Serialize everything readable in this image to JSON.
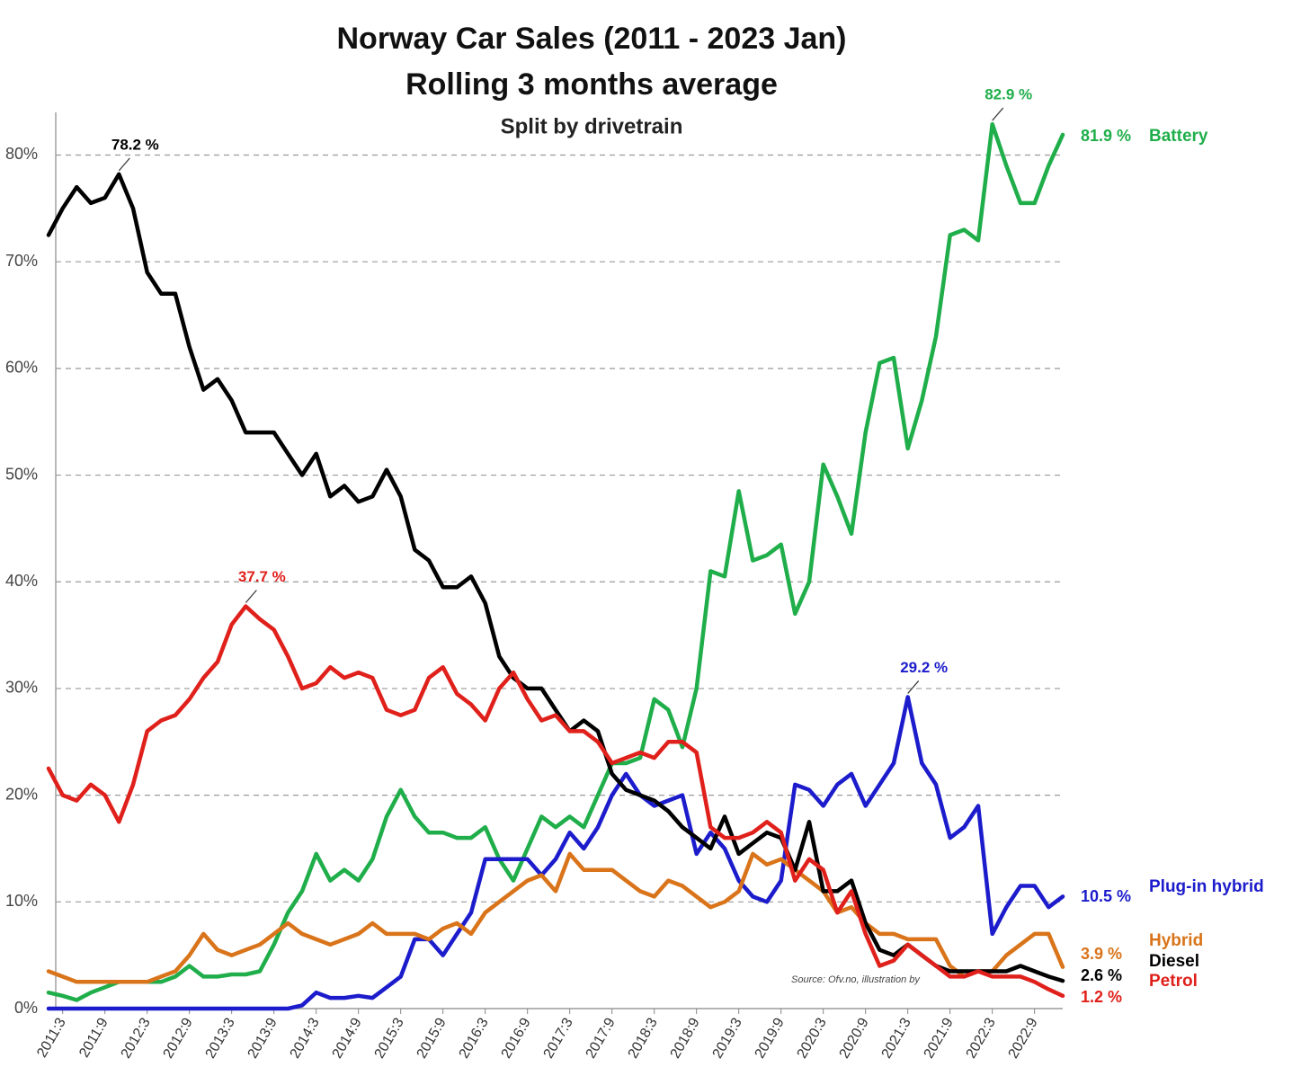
{
  "chart_data": {
    "type": "line",
    "title": "Norway Car Sales (2011 - 2023 Jan)",
    "subtitle": "Rolling 3 months average",
    "subtitle2": "Split by drivetrain",
    "source": "Source: Ofv.no, illustration by",
    "categories": [
      null,
      "2011:3",
      null,
      null,
      "2011:9",
      null,
      null,
      "2012:3",
      null,
      null,
      "2012:9",
      null,
      null,
      "2013:3",
      null,
      null,
      "2013:9",
      null,
      null,
      "2014:3",
      null,
      null,
      "2014:9",
      null,
      null,
      "2015:3",
      null,
      null,
      "2015:9",
      null,
      null,
      "2016:3",
      null,
      null,
      "2016:9",
      null,
      null,
      "2017:3",
      null,
      null,
      "2017:9",
      null,
      null,
      "2018:3",
      null,
      null,
      "2018:9",
      null,
      null,
      "2019:3",
      null,
      null,
      "2019:9",
      null,
      null,
      "2020:3",
      null,
      null,
      "2020:9",
      null,
      null,
      "2021:3",
      null,
      null,
      "2021:9",
      null,
      null,
      "2022:3",
      null,
      null,
      "2022:9",
      null,
      null
    ],
    "ylim": [
      0,
      84
    ],
    "yticks": [
      {
        "value": 0,
        "label": "0%"
      },
      {
        "value": 10,
        "label": "10%"
      },
      {
        "value": 20,
        "label": "20%"
      },
      {
        "value": 30,
        "label": "30%"
      },
      {
        "value": 40,
        "label": "40%"
      },
      {
        "value": 50,
        "label": "50%"
      },
      {
        "value": 60,
        "label": "60%"
      },
      {
        "value": 70,
        "label": "70%"
      },
      {
        "value": 80,
        "label": "80%"
      }
    ],
    "grid": true,
    "series": [
      {
        "name": "Battery",
        "color": "#1fae4a",
        "values": [
          1.5,
          1.2,
          0.8,
          1.5,
          2,
          2.5,
          2.5,
          2.5,
          2.5,
          3,
          4,
          3,
          3,
          3.2,
          3.2,
          3.5,
          6,
          9,
          11,
          14.5,
          12,
          13,
          12,
          14,
          18,
          20.5,
          18,
          16.5,
          16.5,
          16,
          16,
          17,
          14,
          12,
          15,
          18,
          17,
          18,
          17,
          20,
          23,
          23,
          23.5,
          29,
          28,
          24.5,
          30,
          41,
          40.5,
          48.5,
          42,
          42.5,
          43.5,
          37,
          40,
          51,
          48,
          44.5,
          54,
          60.5,
          61,
          52.5,
          57,
          63,
          72.5,
          73,
          72,
          82.9,
          79,
          75.5,
          75.5,
          79,
          81.9
        ],
        "value_labels": [
          null,
          null,
          null,
          null,
          null,
          null,
          null,
          null,
          null,
          null,
          null,
          null,
          null,
          null,
          null,
          null,
          null,
          null,
          null,
          null,
          null,
          null,
          null,
          null,
          null,
          null,
          null,
          null,
          null,
          null,
          null,
          null,
          null,
          null,
          null,
          null,
          null,
          null,
          null,
          null,
          null,
          null,
          null,
          null,
          null,
          null,
          null,
          null,
          null,
          null,
          null,
          null,
          null,
          null,
          null,
          null,
          null,
          null,
          null,
          null,
          null,
          null,
          null,
          null,
          null,
          null,
          null,
          "82.9 %",
          null,
          null,
          null,
          null,
          "81.9 %"
        ]
      },
      {
        "name": "Plug-in hybrid",
        "color": "#1c1ccc",
        "values": [
          0,
          0,
          0,
          0,
          0,
          0,
          0,
          0,
          0,
          0,
          0,
          0,
          0,
          0,
          0,
          0,
          0,
          0,
          0.3,
          1.5,
          1,
          1,
          1.2,
          1,
          2,
          3,
          6.5,
          6.5,
          5,
          7,
          9,
          14,
          14,
          14,
          14,
          12.5,
          14,
          16.5,
          15,
          17,
          20,
          22,
          20,
          19,
          19.5,
          20,
          14.5,
          16.5,
          15,
          12,
          10.5,
          10,
          12,
          21,
          20.5,
          19,
          21,
          22,
          19,
          21,
          23,
          29.2,
          23,
          21,
          16,
          17,
          19,
          7,
          9.5,
          11.5,
          11.5,
          9.5,
          10.5
        ],
        "value_labels": [
          null,
          null,
          null,
          null,
          null,
          null,
          null,
          null,
          null,
          null,
          null,
          null,
          null,
          null,
          null,
          null,
          null,
          null,
          null,
          null,
          null,
          null,
          null,
          null,
          null,
          null,
          null,
          null,
          null,
          null,
          null,
          null,
          null,
          null,
          null,
          null,
          null,
          null,
          null,
          null,
          null,
          null,
          null,
          null,
          null,
          null,
          null,
          null,
          null,
          null,
          null,
          null,
          null,
          null,
          null,
          null,
          null,
          null,
          null,
          null,
          null,
          "29.2 %",
          null,
          null,
          null,
          null,
          null,
          null,
          null,
          null,
          null,
          null,
          "10.5 %"
        ]
      },
      {
        "name": "Hybrid",
        "color": "#d9741a",
        "values": [
          3.5,
          3,
          2.5,
          2.5,
          2.5,
          2.5,
          2.5,
          2.5,
          3,
          3.5,
          5,
          7,
          5.5,
          5,
          5.5,
          6,
          7,
          8,
          7,
          6.5,
          6,
          6.5,
          7,
          8,
          7,
          7,
          7,
          6.5,
          7.5,
          8,
          7,
          9,
          10,
          11,
          12,
          12.5,
          11,
          14.5,
          13,
          13,
          13,
          12,
          11,
          10.5,
          12,
          11.5,
          10.5,
          9.5,
          10,
          11,
          14.5,
          13.5,
          14,
          13,
          12,
          11,
          9,
          9.5,
          8,
          7,
          7,
          6.5,
          6.5,
          6.5,
          4,
          3,
          3.5,
          3.5,
          5,
          6,
          7,
          7,
          3.9
        ],
        "value_labels": [
          null,
          null,
          null,
          null,
          null,
          null,
          null,
          null,
          null,
          null,
          null,
          null,
          null,
          null,
          null,
          null,
          null,
          null,
          null,
          null,
          null,
          null,
          null,
          null,
          null,
          null,
          null,
          null,
          null,
          null,
          null,
          null,
          null,
          null,
          null,
          null,
          null,
          null,
          null,
          null,
          null,
          null,
          null,
          null,
          null,
          null,
          null,
          null,
          null,
          null,
          null,
          null,
          null,
          null,
          null,
          null,
          null,
          null,
          null,
          null,
          null,
          null,
          null,
          null,
          null,
          null,
          null,
          null,
          null,
          null,
          null,
          null,
          "3.9 %"
        ]
      },
      {
        "name": "Diesel",
        "color": "#000000",
        "values": [
          72.5,
          75,
          77,
          75.5,
          76,
          78.2,
          75,
          69,
          67,
          67,
          62,
          58,
          59,
          57,
          54,
          54,
          54,
          52,
          50,
          52,
          48,
          49,
          47.5,
          48,
          50.5,
          48,
          43,
          42,
          39.5,
          39.5,
          40.5,
          38,
          33,
          31,
          30,
          30,
          28,
          26,
          27,
          26,
          22,
          20.5,
          20,
          19.5,
          18.5,
          17,
          16,
          15,
          18,
          14.5,
          15.5,
          16.5,
          16,
          13,
          17.5,
          11,
          11,
          12,
          8,
          5.5,
          5,
          6,
          5,
          4,
          3.5,
          3.5,
          3.5,
          3.5,
          3.5,
          4,
          3.5,
          3,
          2.6
        ],
        "value_labels": [
          null,
          null,
          null,
          null,
          null,
          "78.2 %",
          null,
          null,
          null,
          null,
          null,
          null,
          null,
          null,
          null,
          null,
          null,
          null,
          null,
          null,
          null,
          null,
          null,
          null,
          null,
          null,
          null,
          null,
          null,
          null,
          null,
          null,
          null,
          null,
          null,
          null,
          null,
          null,
          null,
          null,
          null,
          null,
          null,
          null,
          null,
          null,
          null,
          null,
          null,
          null,
          null,
          null,
          null,
          null,
          null,
          null,
          null,
          null,
          null,
          null,
          null,
          null,
          null,
          null,
          null,
          null,
          null,
          null,
          null,
          null,
          null,
          null,
          "2.6 %"
        ]
      },
      {
        "name": "Petrol",
        "color": "#e0201b",
        "values": [
          22.5,
          20,
          19.5,
          21,
          20,
          17.5,
          21,
          26,
          27,
          27.5,
          29,
          31,
          32.5,
          36,
          37.7,
          36.5,
          35.5,
          33,
          30,
          30.5,
          32,
          31,
          31.5,
          31,
          28,
          27.5,
          28,
          31,
          32,
          29.5,
          28.5,
          27,
          30,
          31.5,
          29,
          27,
          27.5,
          26,
          26,
          25,
          23,
          23.5,
          24,
          23.5,
          25,
          25,
          24,
          17,
          16,
          16,
          16.5,
          17.5,
          16.5,
          12,
          14,
          13,
          9,
          11,
          7,
          4,
          4.5,
          6,
          5,
          4,
          3,
          3,
          3.5,
          3,
          3,
          3,
          2.5,
          1.8,
          1.2
        ],
        "value_labels": [
          null,
          null,
          null,
          null,
          null,
          null,
          null,
          null,
          null,
          null,
          null,
          null,
          null,
          null,
          "37.7 %",
          null,
          null,
          null,
          null,
          null,
          null,
          null,
          null,
          null,
          null,
          null,
          null,
          null,
          null,
          null,
          null,
          null,
          null,
          null,
          null,
          null,
          null,
          null,
          null,
          null,
          null,
          null,
          null,
          null,
          null,
          null,
          null,
          null,
          null,
          null,
          null,
          null,
          null,
          null,
          null,
          null,
          null,
          null,
          null,
          null,
          null,
          null,
          null,
          null,
          null,
          null,
          null,
          null,
          null,
          null,
          null,
          null,
          "1.2 %"
        ]
      }
    ]
  }
}
